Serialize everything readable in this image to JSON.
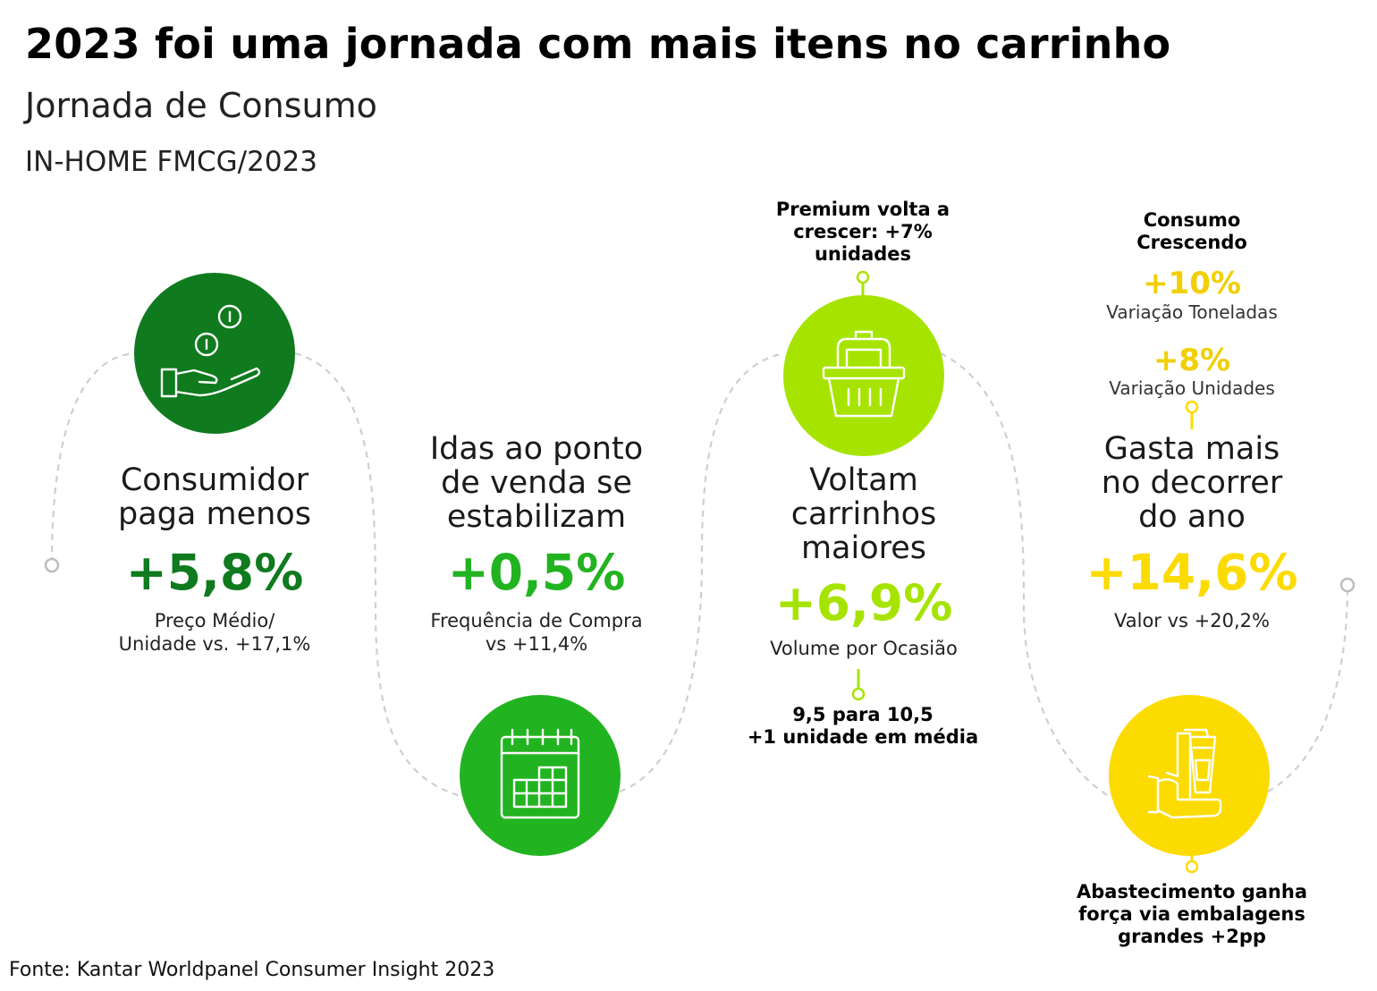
{
  "header": {
    "title": "2023 foi uma jornada com mais itens no carrinho",
    "subtitle": "Jornada de Consumo",
    "scope": "IN-HOME FMCG/2023"
  },
  "colors": {
    "dark_green": "#0f7a1e",
    "mid_green": "#22b321",
    "lime": "#a6e400",
    "yellow": "#fcdb00",
    "path_gray": "#cfcfcf"
  },
  "stages": [
    {
      "icon": "coins-in-hand-icon",
      "heading": [
        "Consumidor",
        "paga menos"
      ],
      "value": "+5,8%",
      "description": [
        "Preço Médio/",
        "Unidade vs. +17,1%"
      ]
    },
    {
      "icon": "calendar-icon",
      "heading": [
        "Idas ao ponto",
        "de venda se",
        "estabilizam"
      ],
      "value": "+0,5%",
      "description": [
        "Frequência de Compra",
        "vs +11,4%"
      ]
    },
    {
      "icon": "shopping-basket-icon",
      "heading": [
        "Voltam",
        "carrinhos",
        "maiores"
      ],
      "value": "+6,9%",
      "description": [
        "Volume por Ocasião"
      ],
      "note_top": [
        "Premium volta a",
        "crescer: +7%",
        "unidades"
      ],
      "note_bottom": [
        "9,5 para 10,5",
        "+1 unidade em média"
      ]
    },
    {
      "icon": "hand-holding-cup-icon",
      "heading": [
        "Gasta mais",
        "no decorrer",
        "do ano"
      ],
      "value": "+14,6%",
      "description": [
        "Valor vs +20,2%"
      ],
      "note_top": [
        "Consumo",
        "Crescendo"
      ],
      "stats": [
        {
          "value": "+10%",
          "label": "Variação Toneladas"
        },
        {
          "value": "+8%",
          "label": "Variação Unidades"
        }
      ],
      "note_bottom": [
        "Abastecimento ganha",
        "força via embalagens",
        "grandes +2pp"
      ]
    }
  ],
  "footer": {
    "source": "Fonte: Kantar Worldpanel Consumer Insight 2023"
  }
}
